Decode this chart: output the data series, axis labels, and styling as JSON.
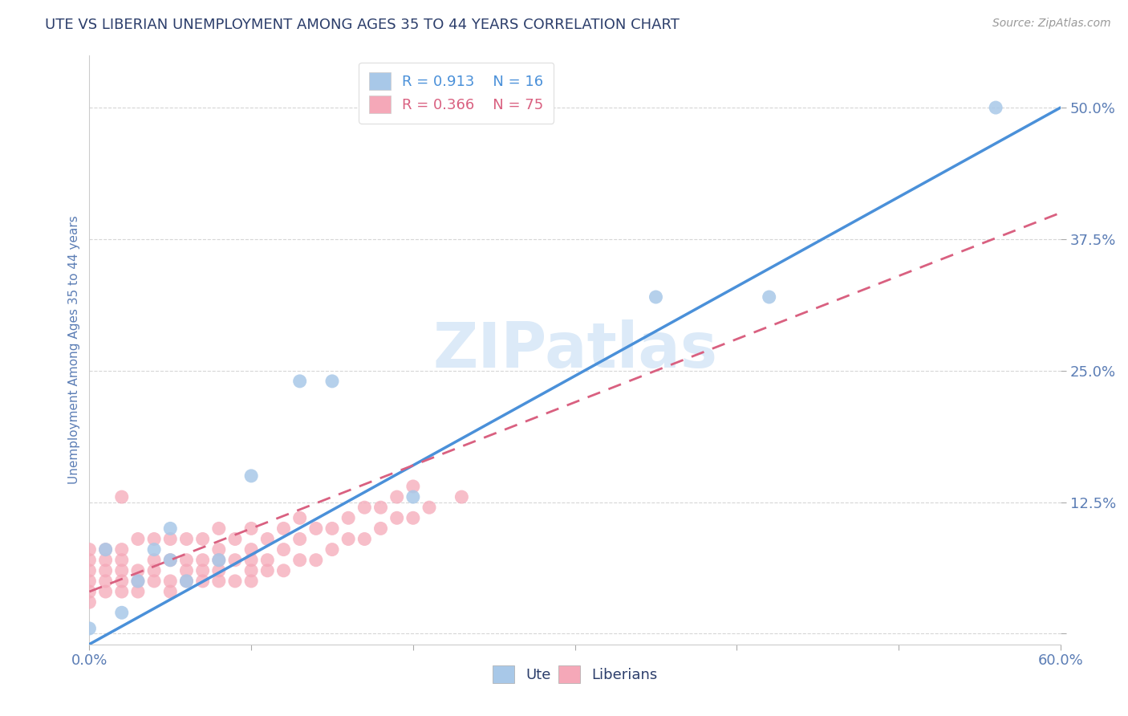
{
  "title": "UTE VS LIBERIAN UNEMPLOYMENT AMONG AGES 35 TO 44 YEARS CORRELATION CHART",
  "source": "Source: ZipAtlas.com",
  "ylabel": "Unemployment Among Ages 35 to 44 years",
  "xlim": [
    0,
    0.6
  ],
  "ylim": [
    -0.01,
    0.55
  ],
  "xticks": [
    0.0,
    0.1,
    0.2,
    0.3,
    0.4,
    0.5,
    0.6
  ],
  "yticks": [
    0.0,
    0.125,
    0.25,
    0.375,
    0.5
  ],
  "ytick_labels": [
    "",
    "12.5%",
    "25.0%",
    "37.5%",
    "50.0%"
  ],
  "xtick_labels": [
    "0.0%",
    "",
    "",
    "",
    "",
    "",
    "60.0%"
  ],
  "ute_R": 0.913,
  "ute_N": 16,
  "liberian_R": 0.366,
  "liberian_N": 75,
  "ute_color": "#a8c8e8",
  "ute_line_color": "#4a90d9",
  "liberian_color": "#f5a8b8",
  "liberian_line_color": "#d96080",
  "background_color": "#ffffff",
  "grid_color": "#cccccc",
  "title_color": "#2c3e6b",
  "tick_label_color": "#5b7db5",
  "watermark_color": "#dceaf8",
  "ute_scatter_x": [
    0.0,
    0.01,
    0.02,
    0.03,
    0.04,
    0.05,
    0.05,
    0.06,
    0.08,
    0.1,
    0.13,
    0.15,
    0.2,
    0.35,
    0.42,
    0.56
  ],
  "ute_scatter_y": [
    0.005,
    0.08,
    0.02,
    0.05,
    0.08,
    0.1,
    0.07,
    0.05,
    0.07,
    0.15,
    0.24,
    0.24,
    0.13,
    0.32,
    0.32,
    0.5
  ],
  "liberian_scatter_x": [
    0.0,
    0.0,
    0.0,
    0.0,
    0.0,
    0.0,
    0.01,
    0.01,
    0.01,
    0.01,
    0.01,
    0.02,
    0.02,
    0.02,
    0.02,
    0.02,
    0.02,
    0.03,
    0.03,
    0.03,
    0.03,
    0.04,
    0.04,
    0.04,
    0.04,
    0.05,
    0.05,
    0.05,
    0.05,
    0.06,
    0.06,
    0.06,
    0.06,
    0.07,
    0.07,
    0.07,
    0.07,
    0.08,
    0.08,
    0.08,
    0.08,
    0.08,
    0.09,
    0.09,
    0.09,
    0.1,
    0.1,
    0.1,
    0.1,
    0.1,
    0.11,
    0.11,
    0.11,
    0.12,
    0.12,
    0.12,
    0.13,
    0.13,
    0.13,
    0.14,
    0.14,
    0.15,
    0.15,
    0.16,
    0.16,
    0.17,
    0.17,
    0.18,
    0.18,
    0.19,
    0.19,
    0.2,
    0.2,
    0.21,
    0.23
  ],
  "liberian_scatter_y": [
    0.03,
    0.04,
    0.05,
    0.06,
    0.07,
    0.08,
    0.04,
    0.05,
    0.06,
    0.07,
    0.08,
    0.04,
    0.05,
    0.06,
    0.07,
    0.08,
    0.13,
    0.04,
    0.05,
    0.06,
    0.09,
    0.05,
    0.06,
    0.07,
    0.09,
    0.04,
    0.05,
    0.07,
    0.09,
    0.05,
    0.06,
    0.07,
    0.09,
    0.05,
    0.06,
    0.07,
    0.09,
    0.05,
    0.06,
    0.07,
    0.08,
    0.1,
    0.05,
    0.07,
    0.09,
    0.05,
    0.06,
    0.07,
    0.08,
    0.1,
    0.06,
    0.07,
    0.09,
    0.06,
    0.08,
    0.1,
    0.07,
    0.09,
    0.11,
    0.07,
    0.1,
    0.08,
    0.1,
    0.09,
    0.11,
    0.09,
    0.12,
    0.1,
    0.12,
    0.11,
    0.13,
    0.11,
    0.14,
    0.12,
    0.13
  ],
  "ute_line_x0": 0.0,
  "ute_line_y0": -0.01,
  "ute_line_x1": 0.6,
  "ute_line_y1": 0.5,
  "lib_line_x0": 0.0,
  "lib_line_y0": 0.04,
  "lib_line_x1": 0.6,
  "lib_line_y1": 0.4
}
